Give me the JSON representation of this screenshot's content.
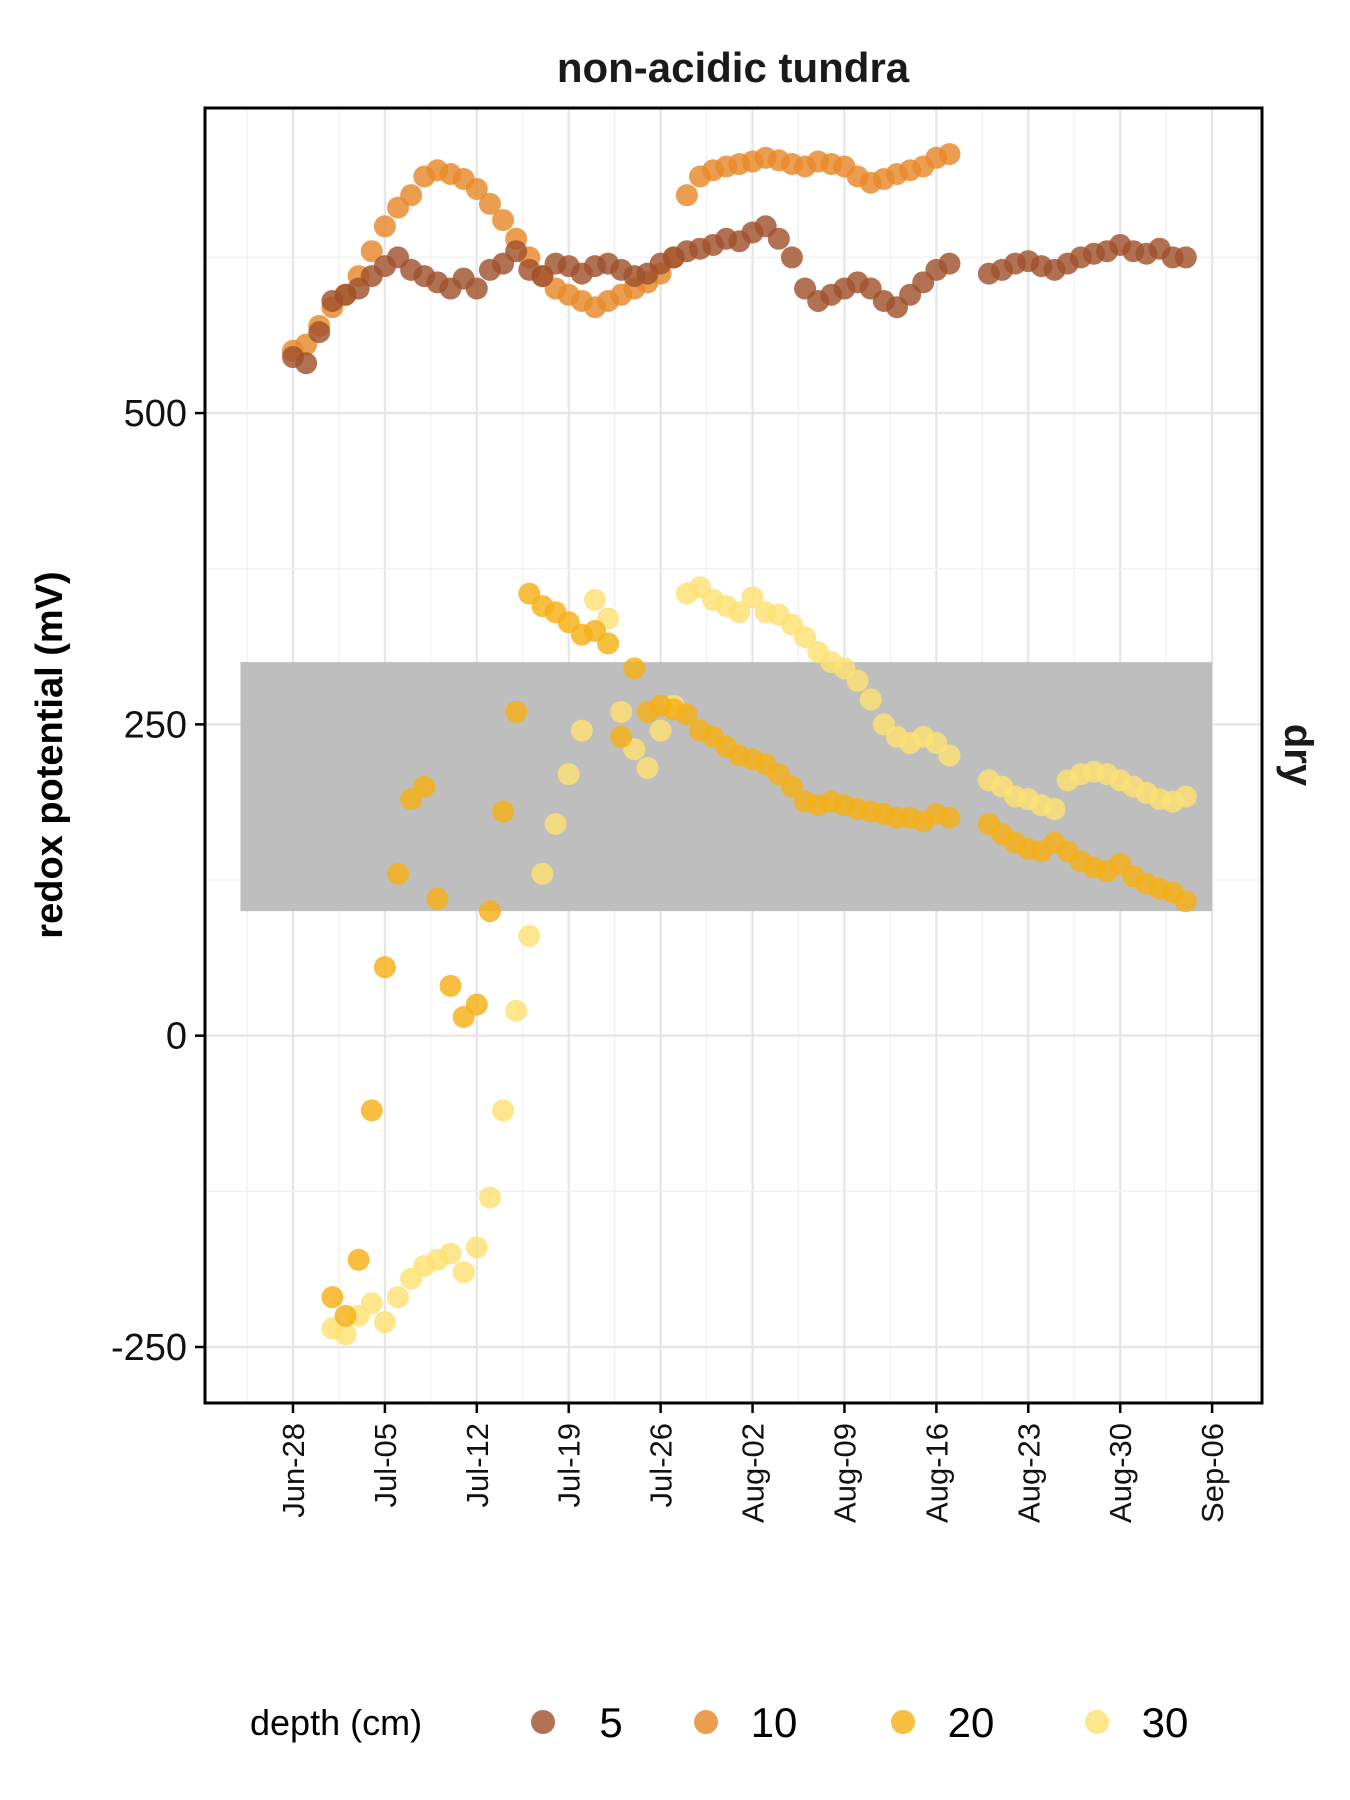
{
  "chart_data": {
    "type": "scatter",
    "title": "non-acidic tundra",
    "strip_label": "dry",
    "xlabel": "",
    "ylabel": "redox potential (mV)",
    "x_ticks": [
      "Jun-28",
      "Jul-05",
      "Jul-12",
      "Jul-19",
      "Jul-26",
      "Aug-02",
      "Aug-09",
      "Aug-16",
      "Aug-23",
      "Aug-30",
      "Sep-06"
    ],
    "x_tick_days": [
      0,
      7,
      14,
      21,
      28,
      35,
      42,
      49,
      56,
      63,
      70
    ],
    "x_range_days": [
      -6.7,
      73.8
    ],
    "y_ticks": [
      -250,
      0,
      250,
      500
    ],
    "ylim": [
      -295,
      745
    ],
    "grid": true,
    "shaded_band": {
      "y_min": 100,
      "y_max": 300,
      "x_from": "Jun-24",
      "x_to": "Sep-06",
      "color": "#bebebe"
    },
    "legend": {
      "title": "depth (cm)",
      "position": "bottom"
    },
    "series": [
      {
        "name": "5",
        "color": "#a0522d",
        "points": [
          [
            "Jun-28",
            545
          ],
          [
            "Jun-29",
            540
          ],
          [
            "Jun-30",
            565
          ],
          [
            "Jul-01",
            590
          ],
          [
            "Jul-02",
            595
          ],
          [
            "Jul-03",
            600
          ],
          [
            "Jul-04",
            610
          ],
          [
            "Jul-05",
            618
          ],
          [
            "Jul-06",
            625
          ],
          [
            "Jul-07",
            615
          ],
          [
            "Jul-08",
            610
          ],
          [
            "Jul-09",
            605
          ],
          [
            "Jul-10",
            600
          ],
          [
            "Jul-11",
            608
          ],
          [
            "Jul-12",
            600
          ],
          [
            "Jul-13",
            615
          ],
          [
            "Jul-14",
            620
          ],
          [
            "Jul-15",
            630
          ],
          [
            "Jul-16",
            615
          ],
          [
            "Jul-17",
            610
          ],
          [
            "Jul-18",
            620
          ],
          [
            "Jul-19",
            618
          ],
          [
            "Jul-20",
            612
          ],
          [
            "Jul-21",
            618
          ],
          [
            "Jul-22",
            620
          ],
          [
            "Jul-23",
            615
          ],
          [
            "Jul-24",
            610
          ],
          [
            "Jul-25",
            612
          ],
          [
            "Jul-26",
            620
          ],
          [
            "Jul-27",
            625
          ],
          [
            "Jul-28",
            630
          ],
          [
            "Jul-29",
            632
          ],
          [
            "Jul-30",
            635
          ],
          [
            "Jul-31",
            640
          ],
          [
            "Aug-01",
            638
          ],
          [
            "Aug-02",
            645
          ],
          [
            "Aug-03",
            650
          ],
          [
            "Aug-04",
            640
          ],
          [
            "Aug-05",
            625
          ],
          [
            "Aug-06",
            600
          ],
          [
            "Aug-07",
            590
          ],
          [
            "Aug-08",
            595
          ],
          [
            "Aug-09",
            600
          ],
          [
            "Aug-10",
            605
          ],
          [
            "Aug-11",
            600
          ],
          [
            "Aug-12",
            590
          ],
          [
            "Aug-13",
            585
          ],
          [
            "Aug-14",
            595
          ],
          [
            "Aug-15",
            605
          ],
          [
            "Aug-16",
            615
          ],
          [
            "Aug-17",
            620
          ],
          [
            "Aug-20",
            612
          ],
          [
            "Aug-21",
            615
          ],
          [
            "Aug-22",
            620
          ],
          [
            "Aug-23",
            622
          ],
          [
            "Aug-24",
            618
          ],
          [
            "Aug-25",
            615
          ],
          [
            "Aug-26",
            620
          ],
          [
            "Aug-27",
            625
          ],
          [
            "Aug-28",
            628
          ],
          [
            "Aug-29",
            630
          ],
          [
            "Aug-30",
            635
          ],
          [
            "Aug-31",
            630
          ],
          [
            "Sep-01",
            628
          ],
          [
            "Sep-02",
            632
          ],
          [
            "Sep-03",
            625
          ],
          [
            "Sep-04",
            625
          ]
        ]
      },
      {
        "name": "10",
        "color": "#e8892a",
        "points": [
          [
            "Jun-28",
            550
          ],
          [
            "Jun-29",
            555
          ],
          [
            "Jun-30",
            570
          ],
          [
            "Jul-01",
            585
          ],
          [
            "Jul-02",
            595
          ],
          [
            "Jul-03",
            610
          ],
          [
            "Jul-04",
            630
          ],
          [
            "Jul-05",
            650
          ],
          [
            "Jul-06",
            665
          ],
          [
            "Jul-07",
            675
          ],
          [
            "Jul-08",
            690
          ],
          [
            "Jul-09",
            695
          ],
          [
            "Jul-10",
            692
          ],
          [
            "Jul-11",
            688
          ],
          [
            "Jul-12",
            680
          ],
          [
            "Jul-13",
            668
          ],
          [
            "Jul-14",
            655
          ],
          [
            "Jul-15",
            640
          ],
          [
            "Jul-16",
            625
          ],
          [
            "Jul-17",
            610
          ],
          [
            "Jul-18",
            600
          ],
          [
            "Jul-19",
            595
          ],
          [
            "Jul-20",
            590
          ],
          [
            "Jul-21",
            585
          ],
          [
            "Jul-22",
            590
          ],
          [
            "Jul-23",
            595
          ],
          [
            "Jul-24",
            600
          ],
          [
            "Jul-25",
            605
          ],
          [
            "Jul-26",
            612
          ],
          [
            "Jul-27",
            625
          ],
          [
            "Jul-28",
            675
          ],
          [
            "Jul-29",
            690
          ],
          [
            "Jul-30",
            695
          ],
          [
            "Jul-31",
            698
          ],
          [
            "Aug-01",
            700
          ],
          [
            "Aug-02",
            702
          ],
          [
            "Aug-03",
            705
          ],
          [
            "Aug-04",
            703
          ],
          [
            "Aug-05",
            700
          ],
          [
            "Aug-06",
            698
          ],
          [
            "Aug-07",
            702
          ],
          [
            "Aug-08",
            700
          ],
          [
            "Aug-09",
            698
          ],
          [
            "Aug-10",
            690
          ],
          [
            "Aug-11",
            685
          ],
          [
            "Aug-12",
            688
          ],
          [
            "Aug-13",
            692
          ],
          [
            "Aug-14",
            695
          ],
          [
            "Aug-15",
            698
          ],
          [
            "Aug-16",
            705
          ],
          [
            "Aug-17",
            708
          ]
        ]
      },
      {
        "name": "20",
        "color": "#f5b016",
        "points": [
          [
            "Jul-01",
            -210
          ],
          [
            "Jul-02",
            -225
          ],
          [
            "Jul-03",
            -180
          ],
          [
            "Jul-04",
            -60
          ],
          [
            "Jul-05",
            55
          ],
          [
            "Jul-06",
            130
          ],
          [
            "Jul-07",
            190
          ],
          [
            "Jul-08",
            200
          ],
          [
            "Jul-09",
            110
          ],
          [
            "Jul-10",
            40
          ],
          [
            "Jul-11",
            15
          ],
          [
            "Jul-12",
            25
          ],
          [
            "Jul-13",
            100
          ],
          [
            "Jul-14",
            180
          ],
          [
            "Jul-15",
            260
          ],
          [
            "Jul-16",
            355
          ],
          [
            "Jul-17",
            345
          ],
          [
            "Jul-18",
            340
          ],
          [
            "Jul-19",
            332
          ],
          [
            "Jul-20",
            322
          ],
          [
            "Jul-21",
            325
          ],
          [
            "Jul-22",
            315
          ],
          [
            "Jul-23",
            240
          ],
          [
            "Jul-24",
            295
          ],
          [
            "Jul-25",
            260
          ],
          [
            "Jul-26",
            265
          ],
          [
            "Jul-27",
            262
          ],
          [
            "Jul-28",
            258
          ],
          [
            "Jul-29",
            245
          ],
          [
            "Jul-30",
            240
          ],
          [
            "Jul-31",
            232
          ],
          [
            "Aug-01",
            225
          ],
          [
            "Aug-02",
            222
          ],
          [
            "Aug-03",
            218
          ],
          [
            "Aug-04",
            210
          ],
          [
            "Aug-05",
            200
          ],
          [
            "Aug-06",
            188
          ],
          [
            "Aug-07",
            185
          ],
          [
            "Aug-08",
            188
          ],
          [
            "Aug-09",
            185
          ],
          [
            "Aug-10",
            182
          ],
          [
            "Aug-11",
            180
          ],
          [
            "Aug-12",
            178
          ],
          [
            "Aug-13",
            175
          ],
          [
            "Aug-14",
            175
          ],
          [
            "Aug-15",
            172
          ],
          [
            "Aug-16",
            178
          ],
          [
            "Aug-17",
            175
          ],
          [
            "Aug-20",
            170
          ],
          [
            "Aug-21",
            162
          ],
          [
            "Aug-22",
            155
          ],
          [
            "Aug-23",
            150
          ],
          [
            "Aug-24",
            148
          ],
          [
            "Aug-25",
            155
          ],
          [
            "Aug-26",
            148
          ],
          [
            "Aug-27",
            140
          ],
          [
            "Aug-28",
            135
          ],
          [
            "Aug-29",
            132
          ],
          [
            "Aug-30",
            138
          ],
          [
            "Aug-31",
            128
          ],
          [
            "Sep-01",
            122
          ],
          [
            "Sep-02",
            118
          ],
          [
            "Sep-03",
            115
          ],
          [
            "Sep-04",
            108
          ]
        ]
      },
      {
        "name": "30",
        "color": "#fde071",
        "points": [
          [
            "Jul-01",
            -235
          ],
          [
            "Jul-02",
            -240
          ],
          [
            "Jul-03",
            -225
          ],
          [
            "Jul-04",
            -215
          ],
          [
            "Jul-05",
            -230
          ],
          [
            "Jul-06",
            -210
          ],
          [
            "Jul-07",
            -195
          ],
          [
            "Jul-08",
            -185
          ],
          [
            "Jul-09",
            -180
          ],
          [
            "Jul-10",
            -175
          ],
          [
            "Jul-11",
            -190
          ],
          [
            "Jul-12",
            -170
          ],
          [
            "Jul-13",
            -130
          ],
          [
            "Jul-14",
            -60
          ],
          [
            "Jul-15",
            20
          ],
          [
            "Jul-16",
            80
          ],
          [
            "Jul-17",
            130
          ],
          [
            "Jul-18",
            170
          ],
          [
            "Jul-19",
            210
          ],
          [
            "Jul-20",
            245
          ],
          [
            "Jul-21",
            350
          ],
          [
            "Jul-22",
            335
          ],
          [
            "Jul-23",
            260
          ],
          [
            "Jul-24",
            230
          ],
          [
            "Jul-25",
            215
          ],
          [
            "Jul-26",
            245
          ],
          [
            "Jul-27",
            265
          ],
          [
            "Jul-28",
            355
          ],
          [
            "Jul-29",
            360
          ],
          [
            "Jul-30",
            350
          ],
          [
            "Jul-31",
            345
          ],
          [
            "Aug-01",
            340
          ],
          [
            "Aug-02",
            352
          ],
          [
            "Aug-03",
            340
          ],
          [
            "Aug-04",
            338
          ],
          [
            "Aug-05",
            330
          ],
          [
            "Aug-06",
            320
          ],
          [
            "Aug-07",
            308
          ],
          [
            "Aug-08",
            300
          ],
          [
            "Aug-09",
            295
          ],
          [
            "Aug-10",
            285
          ],
          [
            "Aug-11",
            270
          ],
          [
            "Aug-12",
            250
          ],
          [
            "Aug-13",
            240
          ],
          [
            "Aug-14",
            235
          ],
          [
            "Aug-15",
            240
          ],
          [
            "Aug-16",
            235
          ],
          [
            "Aug-17",
            225
          ],
          [
            "Aug-20",
            205
          ],
          [
            "Aug-21",
            200
          ],
          [
            "Aug-22",
            192
          ],
          [
            "Aug-23",
            190
          ],
          [
            "Aug-24",
            185
          ],
          [
            "Aug-25",
            182
          ],
          [
            "Aug-26",
            205
          ],
          [
            "Aug-27",
            210
          ],
          [
            "Aug-28",
            212
          ],
          [
            "Aug-29",
            210
          ],
          [
            "Aug-30",
            205
          ],
          [
            "Aug-31",
            200
          ],
          [
            "Sep-01",
            195
          ],
          [
            "Sep-02",
            190
          ],
          [
            "Sep-03",
            188
          ],
          [
            "Sep-04",
            192
          ]
        ]
      }
    ]
  }
}
